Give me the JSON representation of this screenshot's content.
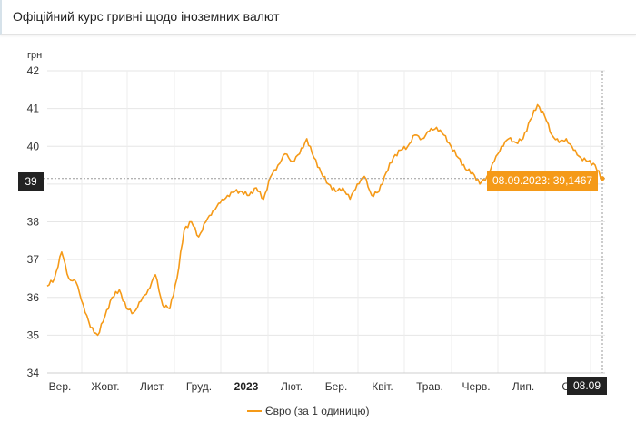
{
  "header": {
    "title": "Офіційний курс гривні щодо іноземних валют"
  },
  "chart_data": {
    "type": "line",
    "ylabel": "грн",
    "ylim": [
      34,
      42
    ],
    "y_ticks": [
      "34",
      "35",
      "36",
      "37",
      "38",
      "39",
      "40",
      "41",
      "42"
    ],
    "x_ticks": [
      "Вер.",
      "Жовт.",
      "Лист.",
      "Груд.",
      "2023",
      "Лют.",
      "Бер.",
      "Квіт.",
      "Трав.",
      "Черв.",
      "Лип.",
      "Се",
      "08.09"
    ],
    "series": [
      {
        "name": "Євро (за 1 одиницю)",
        "color": "#f59a18",
        "x_start": "2022-09-01",
        "x_end": "2023-09-08",
        "values": [
          36.3,
          36.5,
          37.2,
          36.5,
          36.4,
          35.8,
          35.2,
          35.0,
          35.5,
          36.0,
          36.2,
          35.7,
          35.6,
          35.9,
          36.2,
          36.6,
          35.8,
          35.7,
          36.5,
          37.8,
          38.0,
          37.6,
          38.0,
          38.3,
          38.5,
          38.7,
          38.8,
          38.8,
          38.7,
          38.9,
          38.6,
          39.2,
          39.5,
          39.8,
          39.6,
          39.8,
          40.2,
          39.7,
          39.3,
          39.0,
          38.8,
          38.9,
          38.6,
          39.0,
          39.2,
          38.7,
          38.8,
          39.3,
          39.7,
          39.9,
          40.0,
          40.3,
          40.2,
          40.4,
          40.5,
          40.3,
          40.0,
          39.7,
          39.4,
          39.3,
          39.0,
          39.2,
          39.6,
          40.0,
          40.2,
          40.1,
          40.2,
          40.7,
          41.1,
          40.8,
          40.3,
          40.1,
          40.2,
          39.9,
          39.7,
          39.6,
          39.5,
          39.1
        ]
      }
    ],
    "legend": {
      "label": "Євро (за 1 одиницю)",
      "position": "bottom"
    },
    "grid": true,
    "crosshair": {
      "y_label": "39",
      "x_label": "08.09",
      "tooltip": "08.09.2023: 39,1467",
      "value": 39.1467
    }
  }
}
